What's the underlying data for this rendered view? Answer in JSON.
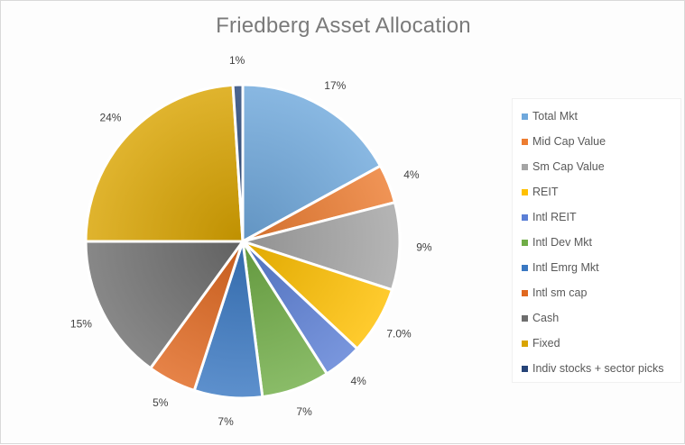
{
  "chart_data": {
    "type": "pie",
    "title": "Friedberg Asset Allocation",
    "legend_position": "right",
    "slices": [
      {
        "name": "Total Mkt",
        "value": 17,
        "label": "17%",
        "color": "#6fa8dc"
      },
      {
        "name": "Mid Cap Value",
        "value": 4,
        "label": "4%",
        "color": "#ed7d31"
      },
      {
        "name": "Sm Cap Value",
        "value": 9,
        "label": "9%",
        "color": "#a5a5a5"
      },
      {
        "name": "REIT",
        "value": 7,
        "label": "7.0%",
        "color": "#ffc000"
      },
      {
        "name": "Intl REIT",
        "value": 4,
        "label": "4%",
        "color": "#5b7fd6"
      },
      {
        "name": "Intl Dev Mkt",
        "value": 7,
        "label": "7%",
        "color": "#70ad47"
      },
      {
        "name": "Intl Emrg Mkt",
        "value": 7,
        "label": "7%",
        "color": "#3a78c2"
      },
      {
        "name": "Intl sm cap",
        "value": 5,
        "label": "5%",
        "color": "#e06820"
      },
      {
        "name": "Cash",
        "value": 15,
        "label": "15%",
        "color": "#6e6e6e"
      },
      {
        "name": "Fixed",
        "value": 24,
        "label": "24%",
        "color": "#d9a400"
      },
      {
        "name": "Indiv stocks + sector picks",
        "value": 1,
        "label": "1%",
        "color": "#264478"
      }
    ]
  }
}
